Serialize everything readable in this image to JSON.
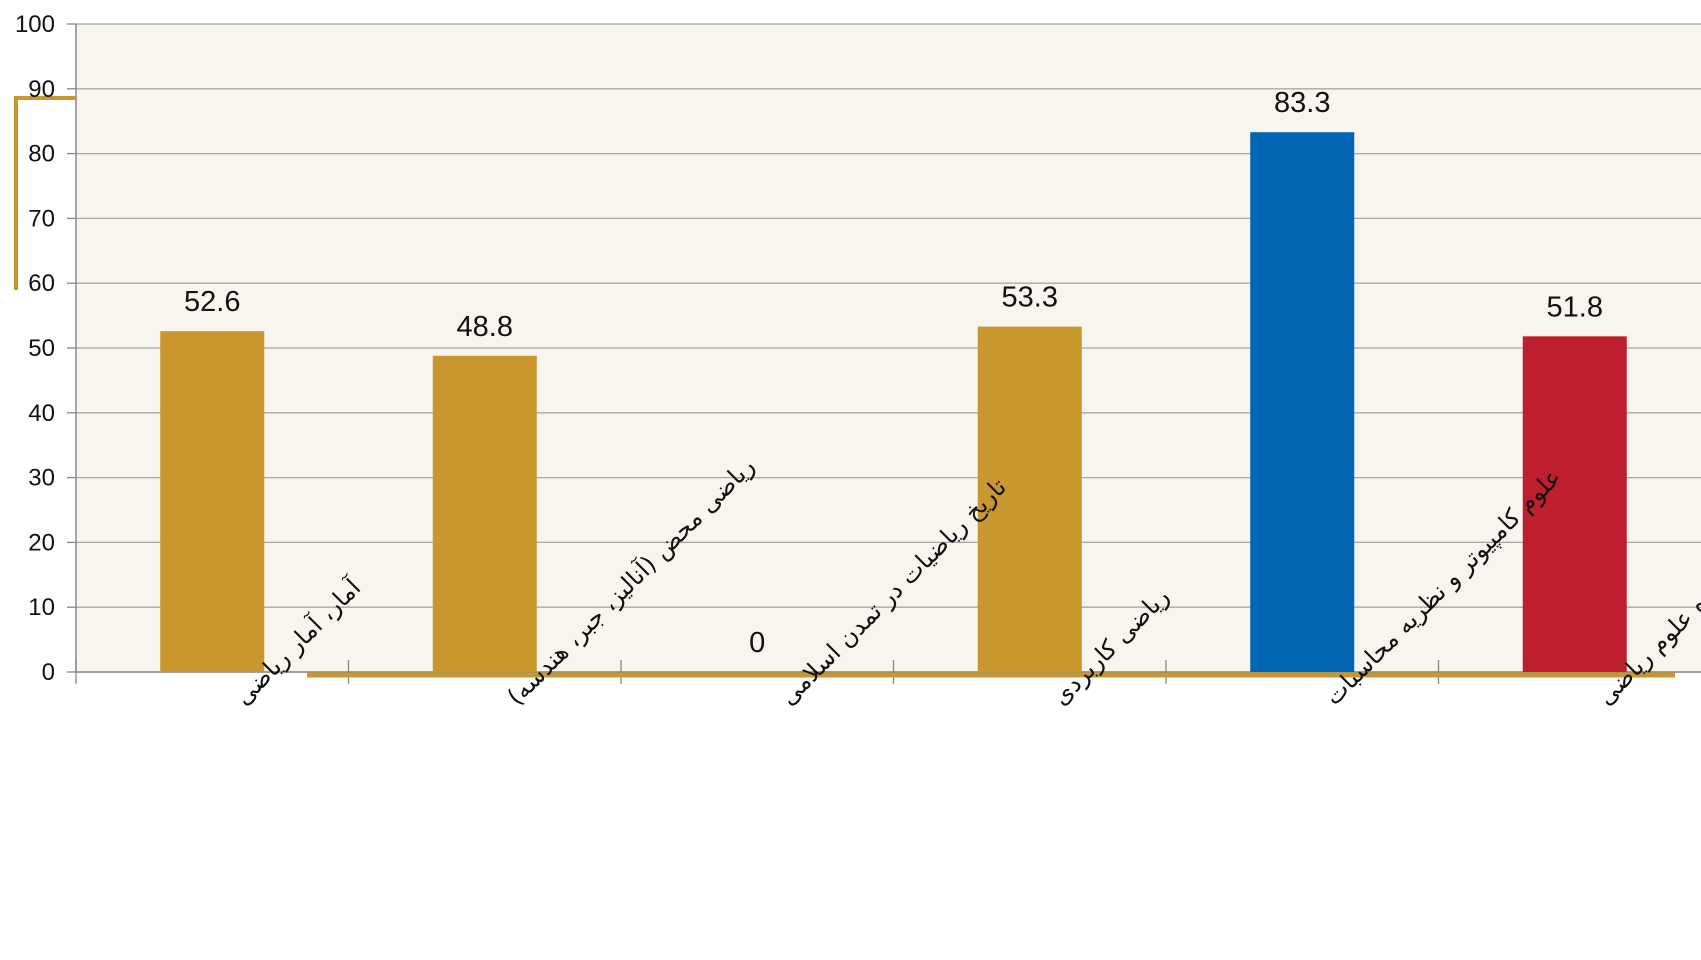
{
  "chart_data": {
    "type": "bar",
    "categories": [
      "آمار، آمار ریاضی",
      "ریاضی محض (آنالیز، جبر، هندسه)",
      "تاریخ ریاضیات در تمدن اسلامی",
      "ریاضی کاربردی",
      "علوم کامپیوتر و نظریه محاسبات",
      "میانگین دانشکده علوم ریاضی"
    ],
    "values": [
      52.6,
      48.8,
      0,
      53.3,
      83.3,
      51.8
    ],
    "value_labels": [
      "52.6",
      "48.8",
      "0",
      "53.3",
      "83.3",
      "51.8"
    ],
    "colors": [
      "#C9972D",
      "#C9972D",
      "#C9972D",
      "#C9972D",
      "#0066B3",
      "#BE1E2D"
    ],
    "y_ticks": [
      "0",
      "10",
      "20",
      "30",
      "40",
      "50",
      "60",
      "70",
      "80",
      "90",
      "100"
    ],
    "ylim": [
      0,
      100
    ],
    "title": "",
    "xlabel": "",
    "ylabel": "",
    "grid": true,
    "legend": "none",
    "plot_background": "#F8F4EE",
    "grid_color": "#A8A8A8",
    "accent_color": "#C9972D"
  }
}
